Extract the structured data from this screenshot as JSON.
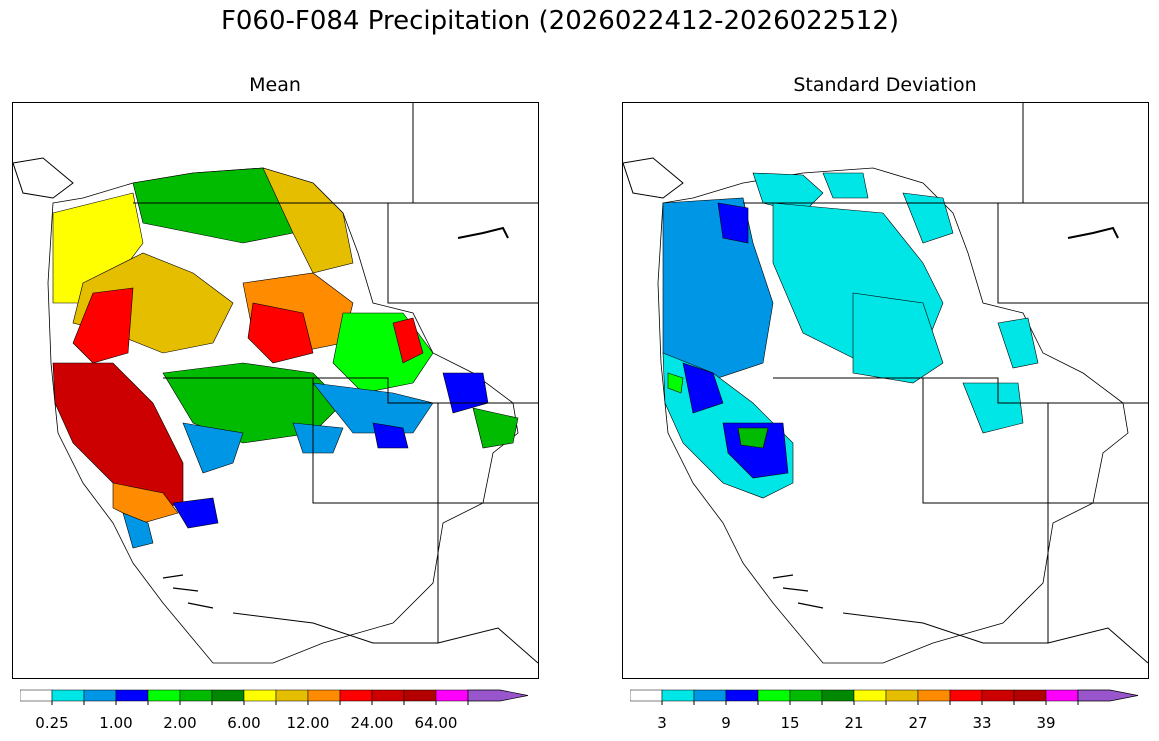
{
  "title": "F060-F084 Precipitation (2026022412-2026022512)",
  "panels": [
    {
      "title": "Mean"
    },
    {
      "title": "Standard Deviation"
    }
  ],
  "colormap": [
    "#ffffff",
    "#00e5e5",
    "#0096e6",
    "#0000ff",
    "#00ff00",
    "#00bb00",
    "#008800",
    "#ffff00",
    "#e5be00",
    "#ff8c00",
    "#ff0000",
    "#cc0000",
    "#b30000",
    "#ff00ff",
    "#9955cc"
  ],
  "colorbars": [
    {
      "ticks": [
        "0.25",
        "1.00",
        "2.00",
        "6.00",
        "12.00",
        "24.00",
        "64.00"
      ]
    },
    {
      "ticks": [
        "3",
        "9",
        "15",
        "21",
        "27",
        "33",
        "39"
      ]
    }
  ]
}
